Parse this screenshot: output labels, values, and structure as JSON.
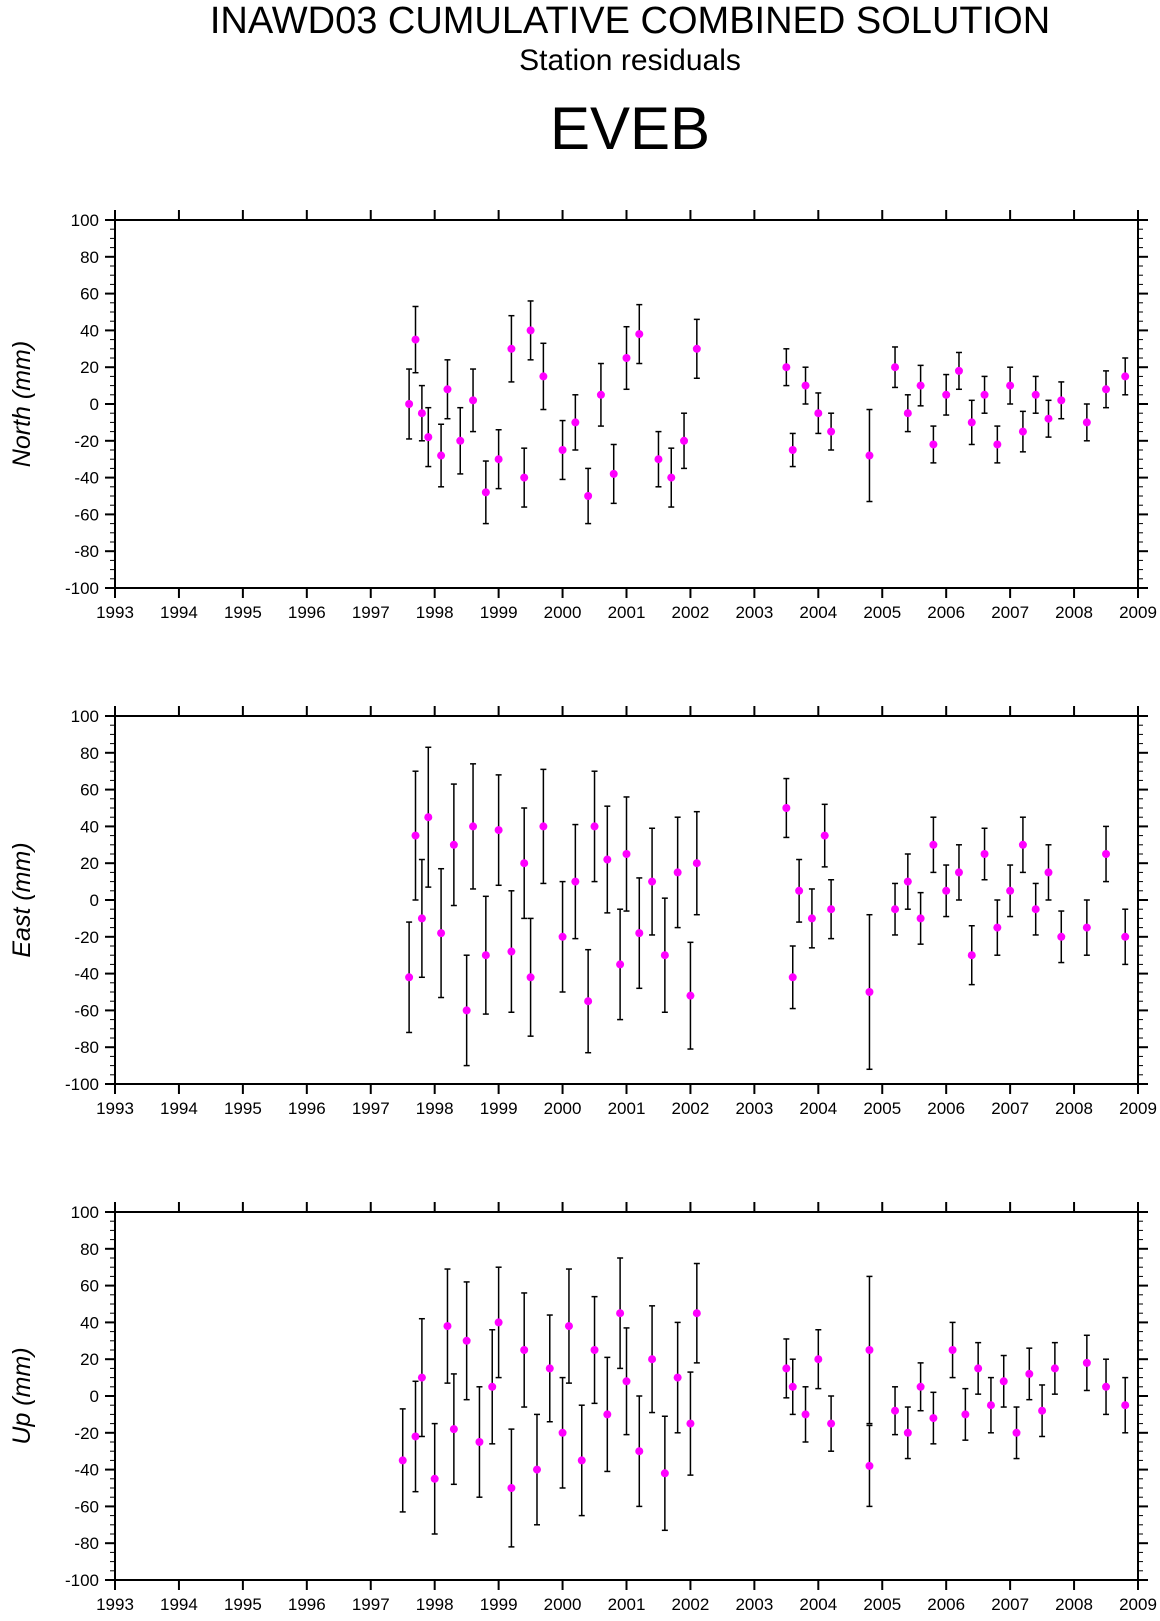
{
  "header": {
    "title": "INAWD03 CUMULATIVE COMBINED SOLUTION",
    "subtitle": "Station residuals",
    "station": "EVEB"
  },
  "colors": {
    "point": "#ff00ff",
    "errorbar": "#000000",
    "axis": "#000000",
    "background": "#ffffff"
  },
  "chart_data": [
    {
      "type": "scatter",
      "title": "North",
      "ylabel": "North (mm)",
      "xlim": [
        1993,
        2009
      ],
      "ylim": [
        -100,
        100
      ],
      "x_tick_labels": [
        "1993",
        "1994",
        "1995",
        "1996",
        "1997",
        "1998",
        "1999",
        "2000",
        "2001",
        "2002",
        "2003",
        "2004",
        "2005",
        "2006",
        "2007",
        "2008",
        "2009"
      ],
      "y_tick_labels": [
        "100",
        "80",
        "60",
        "40",
        "20",
        "0",
        "-20",
        "-40",
        "-60",
        "-80",
        "-100"
      ],
      "error_bars": true,
      "x": [
        1997.6,
        1997.7,
        1997.8,
        1997.9,
        1998.1,
        1998.2,
        1998.4,
        1998.6,
        1998.8,
        1999.0,
        1999.2,
        1999.4,
        1999.5,
        1999.7,
        2000.0,
        2000.2,
        2000.4,
        2000.6,
        2000.8,
        2001.0,
        2001.2,
        2001.5,
        2001.7,
        2001.9,
        2002.1,
        2003.5,
        2003.6,
        2003.8,
        2004.0,
        2004.2,
        2004.8,
        2005.2,
        2005.4,
        2005.6,
        2005.8,
        2006.0,
        2006.2,
        2006.4,
        2006.6,
        2006.8,
        2007.0,
        2007.2,
        2007.4,
        2007.6,
        2007.8,
        2008.2,
        2008.5,
        2008.8
      ],
      "y": [
        0,
        35,
        -5,
        -18,
        -28,
        8,
        -20,
        2,
        -48,
        -30,
        30,
        -40,
        40,
        15,
        -25,
        -10,
        -50,
        5,
        -38,
        25,
        38,
        -30,
        -40,
        -20,
        30,
        20,
        -25,
        10,
        -5,
        -15,
        -28,
        20,
        -5,
        10,
        -22,
        5,
        18,
        -10,
        5,
        -22,
        10,
        -15,
        5,
        -8,
        2,
        -10,
        8,
        15
      ],
      "err": [
        19,
        18,
        15,
        16,
        17,
        16,
        18,
        17,
        17,
        16,
        18,
        16,
        16,
        18,
        16,
        15,
        15,
        17,
        16,
        17,
        16,
        15,
        16,
        15,
        16,
        10,
        9,
        10,
        11,
        10,
        25,
        11,
        10,
        11,
        10,
        11,
        10,
        12,
        10,
        10,
        10,
        11,
        10,
        10,
        10,
        10,
        10,
        10
      ]
    },
    {
      "type": "scatter",
      "title": "East",
      "ylabel": "East (mm)",
      "xlim": [
        1993,
        2009
      ],
      "ylim": [
        -100,
        100
      ],
      "x_tick_labels": [
        "1993",
        "1994",
        "1995",
        "1996",
        "1997",
        "1998",
        "1999",
        "2000",
        "2001",
        "2002",
        "2003",
        "2004",
        "2005",
        "2006",
        "2007",
        "2008",
        "2009"
      ],
      "y_tick_labels": [
        "100",
        "80",
        "60",
        "40",
        "20",
        "0",
        "-20",
        "-40",
        "-60",
        "-80",
        "-100"
      ],
      "error_bars": true,
      "x": [
        1997.6,
        1997.7,
        1997.8,
        1997.9,
        1998.1,
        1998.3,
        1998.5,
        1998.6,
        1998.8,
        1999.0,
        1999.2,
        1999.4,
        1999.5,
        1999.7,
        2000.0,
        2000.2,
        2000.4,
        2000.5,
        2000.7,
        2000.9,
        2001.0,
        2001.2,
        2001.4,
        2001.6,
        2001.8,
        2002.0,
        2002.1,
        2003.5,
        2003.6,
        2003.7,
        2003.9,
        2004.1,
        2004.2,
        2004.8,
        2005.2,
        2005.4,
        2005.6,
        2005.8,
        2006.0,
        2006.2,
        2006.4,
        2006.6,
        2006.8,
        2007.0,
        2007.2,
        2007.4,
        2007.6,
        2007.8,
        2008.2,
        2008.5,
        2008.8
      ],
      "y": [
        -42,
        35,
        -10,
        45,
        -18,
        30,
        -60,
        40,
        -30,
        38,
        -28,
        20,
        -42,
        40,
        -20,
        10,
        -55,
        40,
        22,
        -35,
        25,
        -18,
        10,
        -30,
        15,
        -52,
        20,
        50,
        -42,
        5,
        -10,
        35,
        -5,
        -50,
        -5,
        10,
        -10,
        30,
        5,
        15,
        -30,
        25,
        -15,
        5,
        30,
        -5,
        15,
        -20,
        -15,
        25,
        -20
      ],
      "err": [
        30,
        35,
        32,
        38,
        35,
        33,
        30,
        34,
        32,
        30,
        33,
        30,
        32,
        31,
        30,
        31,
        28,
        30,
        29,
        30,
        31,
        30,
        29,
        31,
        30,
        29,
        28,
        16,
        17,
        17,
        16,
        17,
        16,
        42,
        14,
        15,
        14,
        15,
        14,
        15,
        16,
        14,
        15,
        14,
        15,
        14,
        15,
        14,
        15,
        15,
        15
      ]
    },
    {
      "type": "scatter",
      "title": "Up",
      "ylabel": "Up (mm)",
      "xlim": [
        1993,
        2009
      ],
      "ylim": [
        -100,
        100
      ],
      "x_tick_labels": [
        "1993",
        "1994",
        "1995",
        "1996",
        "1997",
        "1998",
        "1999",
        "2000",
        "2001",
        "2002",
        "2003",
        "2004",
        "2005",
        "2006",
        "2007",
        "2008",
        "2009"
      ],
      "y_tick_labels": [
        "100",
        "80",
        "60",
        "40",
        "20",
        "0",
        "-20",
        "-40",
        "-60",
        "-80",
        "-100"
      ],
      "error_bars": true,
      "x": [
        1997.5,
        1997.7,
        1997.8,
        1998.0,
        1998.2,
        1998.3,
        1998.5,
        1998.7,
        1998.9,
        1999.0,
        1999.2,
        1999.4,
        1999.6,
        1999.8,
        2000.0,
        2000.1,
        2000.3,
        2000.5,
        2000.7,
        2000.9,
        2001.0,
        2001.2,
        2001.4,
        2001.6,
        2001.8,
        2002.0,
        2002.1,
        2003.5,
        2003.6,
        2003.8,
        2004.0,
        2004.2,
        2004.8,
        2004.8,
        2005.2,
        2005.4,
        2005.6,
        2005.8,
        2006.1,
        2006.3,
        2006.5,
        2006.7,
        2006.9,
        2007.1,
        2007.3,
        2007.5,
        2007.7,
        2008.2,
        2008.5,
        2008.8
      ],
      "y": [
        -35,
        -22,
        10,
        -45,
        38,
        -18,
        30,
        -25,
        5,
        40,
        -50,
        25,
        -40,
        15,
        -20,
        38,
        -35,
        25,
        -10,
        45,
        8,
        -30,
        20,
        -42,
        10,
        -15,
        45,
        15,
        5,
        -10,
        20,
        -15,
        25,
        -38,
        -8,
        -20,
        5,
        -12,
        25,
        -10,
        15,
        -5,
        8,
        -20,
        12,
        -8,
        15,
        18,
        5,
        -5
      ],
      "err": [
        28,
        30,
        32,
        30,
        31,
        30,
        32,
        30,
        31,
        30,
        32,
        31,
        30,
        29,
        30,
        31,
        30,
        29,
        31,
        30,
        29,
        30,
        29,
        31,
        30,
        28,
        27,
        16,
        15,
        15,
        16,
        15,
        40,
        22,
        13,
        14,
        13,
        14,
        15,
        14,
        14,
        15,
        14,
        14,
        14,
        14,
        14,
        15,
        15,
        15
      ]
    }
  ]
}
